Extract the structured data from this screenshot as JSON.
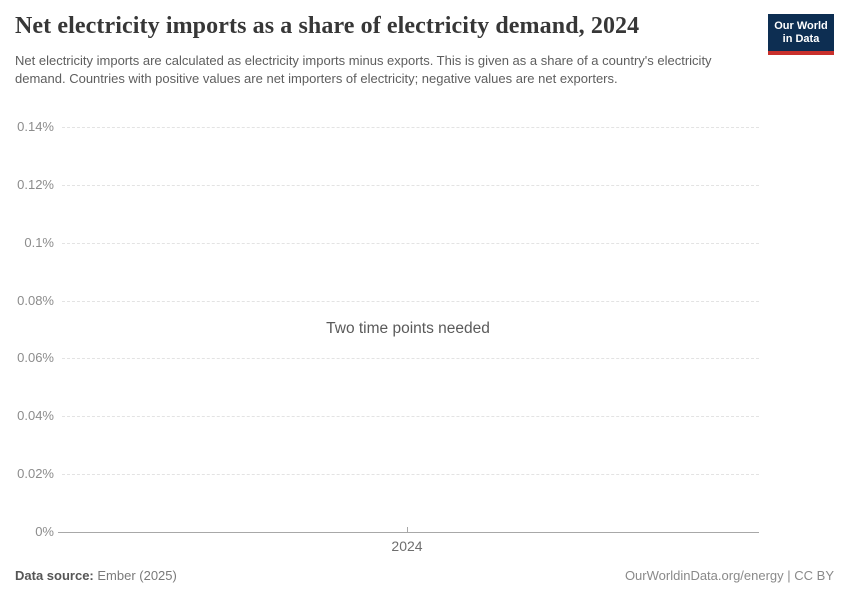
{
  "header": {
    "title": "Net electricity imports as a share of electricity demand, 2024",
    "subtitle": "Net electricity imports are calculated as electricity imports minus exports. This is given as a share of a country's electricity demand. Countries with positive values are net importers of electricity; negative values are net exporters.",
    "logo": {
      "line1": "Our World",
      "line2": "in Data"
    }
  },
  "chart_data": {
    "type": "line",
    "title": "Net electricity imports as a share of electricity demand, 2024",
    "message": "Two time points needed",
    "series": [],
    "x_ticks": [
      "2024"
    ],
    "y_ticks": [
      "0.14%",
      "0.12%",
      "0.1%",
      "0.08%",
      "0.06%",
      "0.04%",
      "0.02%",
      "0%"
    ],
    "y_tick_values": [
      0.14,
      0.12,
      0.1,
      0.08,
      0.06,
      0.04,
      0.02,
      0
    ],
    "ylim": [
      0,
      0.14
    ],
    "ylabel": "",
    "xlabel": "",
    "grid": "horizontal-dashed",
    "legend": "none"
  },
  "footer": {
    "datasource_label": "Data source:",
    "datasource_value": " Ember (2025)",
    "credit": "OurWorldinData.org/energy | CC BY"
  },
  "colors": {
    "logo_background": "#0d2e52",
    "logo_bar": "#c9302c",
    "gridline": "#e3e3e3",
    "axis": "#a8a8a8",
    "tick_text": "#8c8c8c"
  }
}
